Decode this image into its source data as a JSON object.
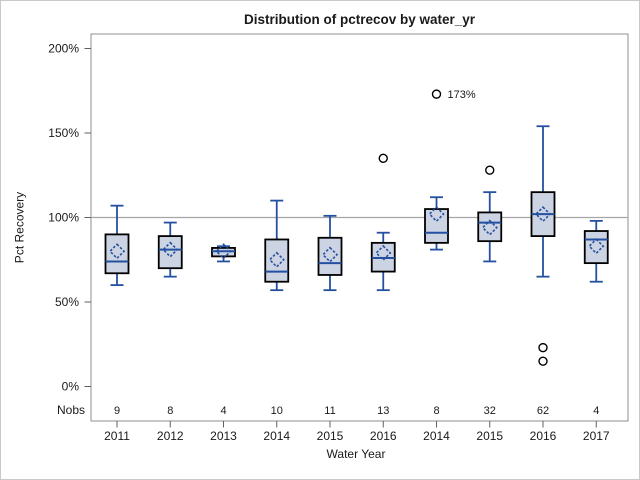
{
  "colors": {
    "box_fill": "#ccd3e2",
    "box_border": "#000000",
    "whisker": "#2450a0",
    "median": "#2450a0",
    "mean_marker": "#2450a0",
    "outlier_stroke": "#000000",
    "reference_line": "#a5a5a5",
    "frame": "#8f8f8f",
    "tick_mark": "#616161",
    "text": "#1a1a1a"
  },
  "chart_data": {
    "type": "boxplot",
    "title": "Distribution of pctrecov by water_yr",
    "xlabel": "Water Year",
    "ylabel": "Pct Recovery",
    "nobs_label": "Nobs",
    "ylim": [
      0,
      208
    ],
    "ytick_values": [
      0,
      50,
      100,
      150,
      200
    ],
    "ytick_labels": [
      "0%",
      "50%",
      "100%",
      "150%",
      "200%"
    ],
    "reference_line_y": 100,
    "grid": "off",
    "legend": "none",
    "categories": [
      "2011",
      "2012",
      "2013",
      "2014",
      "2015",
      "2016",
      "2014",
      "2015",
      "2016",
      "2017"
    ],
    "nobs": [
      9,
      8,
      4,
      10,
      11,
      13,
      8,
      32,
      62,
      4
    ],
    "boxes": [
      {
        "category": "2011",
        "nobs": 9,
        "whisker_low": 60,
        "q1": 67,
        "median": 74,
        "q3": 90,
        "whisker_high": 107,
        "mean": 80,
        "outliers": []
      },
      {
        "category": "2012",
        "nobs": 8,
        "whisker_low": 65,
        "q1": 70,
        "median": 81,
        "q3": 89,
        "whisker_high": 97,
        "mean": 81,
        "outliers": []
      },
      {
        "category": "2013",
        "nobs": 4,
        "whisker_low": 74,
        "q1": 77,
        "median": 80,
        "q3": 82,
        "whisker_high": 83,
        "mean": 80,
        "outliers": []
      },
      {
        "category": "2014",
        "nobs": 10,
        "whisker_low": 57,
        "q1": 62,
        "median": 68,
        "q3": 87,
        "whisker_high": 110,
        "mean": 75,
        "outliers": []
      },
      {
        "category": "2015",
        "nobs": 11,
        "whisker_low": 57,
        "q1": 66,
        "median": 73,
        "q3": 88,
        "whisker_high": 101,
        "mean": 78,
        "outliers": []
      },
      {
        "category": "2016",
        "nobs": 13,
        "whisker_low": 57,
        "q1": 68,
        "median": 76,
        "q3": 85,
        "whisker_high": 91,
        "mean": 79,
        "outliers": [
          135
        ]
      },
      {
        "category": "2014",
        "nobs": 8,
        "whisker_low": 81,
        "q1": 85,
        "median": 91,
        "q3": 105,
        "whisker_high": 112,
        "mean": 102,
        "outliers": [
          173
        ]
      },
      {
        "category": "2015",
        "nobs": 32,
        "whisker_low": 74,
        "q1": 86,
        "median": 97,
        "q3": 103,
        "whisker_high": 115,
        "mean": 94,
        "outliers": [
          128
        ]
      },
      {
        "category": "2016",
        "nobs": 62,
        "whisker_low": 65,
        "q1": 89,
        "median": 102,
        "q3": 115,
        "whisker_high": 154,
        "mean": 102,
        "outliers": [
          23,
          15
        ]
      },
      {
        "category": "2017",
        "nobs": 4,
        "whisker_low": 62,
        "q1": 73,
        "median": 87,
        "q3": 92,
        "whisker_high": 98,
        "mean": 83,
        "outliers": []
      }
    ],
    "outlier_labels": [
      {
        "box_index": 6,
        "value": 173,
        "text": "173%"
      }
    ]
  }
}
